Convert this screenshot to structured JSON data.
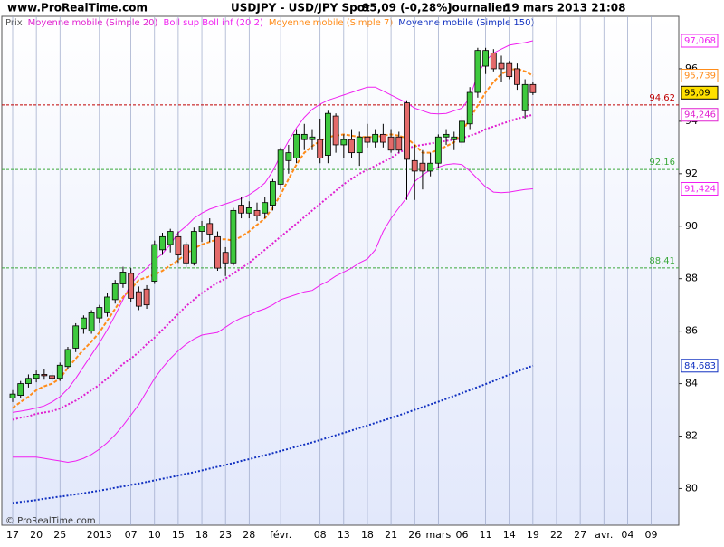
{
  "header": {
    "site": "www.ProRealTime.com",
    "instrument": "USDJPY - USD/JPY Spot",
    "quote": "95,09 (-0,28%)",
    "period": "Journalier",
    "timestamp": "19 mars 2013 21:08"
  },
  "footer": "© ProRealTime.com",
  "chart_data": {
    "type": "candlestick",
    "price_legend": "Prix",
    "price_color_up": "#3ec93e",
    "price_color_down": "#e36a6a",
    "last_label": "95,09",
    "ylim": [
      78.6,
      98.0
    ],
    "yticks": [
      80,
      82,
      84,
      86,
      88,
      90,
      92,
      94,
      96
    ],
    "grid": true,
    "categories": [
      "17",
      null,
      null,
      "20",
      null,
      null,
      "25",
      null,
      null,
      null,
      null,
      "2013",
      null,
      null,
      null,
      "07",
      null,
      null,
      "10",
      null,
      null,
      "15",
      null,
      null,
      "18",
      null,
      null,
      "23",
      null,
      null,
      "28",
      null,
      null,
      null,
      "févr.",
      null,
      null,
      null,
      null,
      "08",
      null,
      null,
      "13",
      null,
      null,
      "18",
      null,
      null,
      "21",
      null,
      null,
      "26",
      null,
      null,
      "mars",
      null,
      null,
      "06",
      null,
      null,
      "11",
      null,
      null,
      "14",
      null,
      null,
      "19",
      null,
      null,
      "22",
      null,
      null,
      "27",
      null,
      null,
      "avr.",
      null,
      null,
      "04",
      null,
      null,
      "09",
      null,
      null,
      null
    ],
    "ohlc": [
      [
        83.45,
        83.75,
        83.3,
        83.6
      ],
      [
        83.55,
        84.1,
        83.45,
        84.0
      ],
      [
        84.0,
        84.35,
        83.85,
        84.2
      ],
      [
        84.2,
        84.5,
        84.05,
        84.35
      ],
      [
        84.35,
        84.55,
        84.15,
        84.3
      ],
      [
        84.3,
        84.45,
        84.05,
        84.2
      ],
      [
        84.2,
        84.8,
        84.1,
        84.7
      ],
      [
        84.65,
        85.4,
        84.55,
        85.3
      ],
      [
        85.35,
        86.3,
        85.2,
        86.2
      ],
      [
        86.1,
        86.6,
        85.9,
        86.5
      ],
      [
        86.0,
        86.8,
        85.9,
        86.7
      ],
      [
        86.5,
        87.0,
        86.3,
        86.9
      ],
      [
        86.7,
        87.45,
        86.55,
        87.3
      ],
      [
        87.2,
        87.95,
        87.05,
        87.8
      ],
      [
        87.8,
        88.45,
        87.65,
        88.25
      ],
      [
        88.2,
        88.4,
        87.1,
        87.25
      ],
      [
        87.5,
        87.7,
        86.8,
        86.95
      ],
      [
        87.6,
        87.75,
        86.85,
        87.0
      ],
      [
        87.9,
        89.45,
        87.8,
        89.3
      ],
      [
        89.1,
        89.75,
        88.9,
        89.6
      ],
      [
        89.3,
        89.9,
        89.0,
        89.8
      ],
      [
        89.6,
        89.8,
        88.6,
        88.9
      ],
      [
        89.3,
        89.4,
        88.4,
        88.6
      ],
      [
        88.6,
        89.95,
        88.5,
        89.8
      ],
      [
        89.8,
        90.2,
        89.4,
        90.0
      ],
      [
        90.1,
        90.3,
        89.4,
        89.7
      ],
      [
        89.6,
        89.8,
        88.3,
        88.4
      ],
      [
        89.0,
        89.2,
        88.1,
        88.6
      ],
      [
        88.6,
        90.7,
        88.5,
        90.6
      ],
      [
        90.8,
        91.1,
        90.3,
        90.5
      ],
      [
        90.5,
        90.95,
        90.3,
        90.7
      ],
      [
        90.6,
        90.9,
        90.2,
        90.4
      ],
      [
        90.5,
        91.1,
        90.3,
        90.9
      ],
      [
        90.8,
        91.8,
        90.6,
        91.7
      ],
      [
        91.6,
        93.0,
        91.4,
        92.9
      ],
      [
        92.5,
        93.1,
        92.0,
        92.8
      ],
      [
        92.6,
        93.7,
        92.4,
        93.5
      ],
      [
        93.3,
        93.9,
        92.9,
        93.5
      ],
      [
        93.3,
        93.7,
        92.9,
        93.4
      ],
      [
        93.3,
        94.1,
        92.4,
        92.6
      ],
      [
        92.7,
        94.4,
        92.4,
        94.3
      ],
      [
        94.2,
        94.3,
        92.8,
        93.1
      ],
      [
        93.1,
        93.5,
        92.6,
        93.3
      ],
      [
        93.3,
        93.7,
        92.6,
        92.8
      ],
      [
        92.8,
        93.6,
        92.3,
        93.4
      ],
      [
        93.4,
        93.9,
        93.0,
        93.2
      ],
      [
        93.2,
        93.7,
        93.0,
        93.5
      ],
      [
        93.5,
        93.9,
        93.0,
        93.2
      ],
      [
        93.4,
        93.7,
        92.8,
        92.9
      ],
      [
        93.4,
        93.6,
        92.8,
        92.9
      ],
      [
        94.7,
        94.8,
        91.0,
        92.55
      ],
      [
        92.5,
        93.1,
        91.0,
        92.1
      ],
      [
        92.4,
        92.9,
        91.4,
        92.1
      ],
      [
        92.1,
        92.8,
        91.9,
        92.4
      ],
      [
        92.4,
        93.5,
        92.2,
        93.4
      ],
      [
        93.4,
        93.7,
        93.1,
        93.5
      ],
      [
        93.3,
        93.6,
        92.9,
        93.4
      ],
      [
        93.2,
        94.2,
        93.0,
        94.0
      ],
      [
        93.9,
        95.3,
        93.7,
        95.1
      ],
      [
        95.1,
        96.8,
        94.9,
        96.7
      ],
      [
        96.1,
        96.8,
        95.8,
        96.7
      ],
      [
        96.6,
        96.75,
        95.9,
        96.0
      ],
      [
        96.2,
        96.5,
        95.5,
        96.0
      ],
      [
        96.2,
        96.3,
        95.6,
        95.7
      ],
      [
        96.0,
        96.2,
        95.2,
        95.4
      ],
      [
        94.4,
        95.6,
        94.1,
        95.4
      ],
      [
        95.4,
        95.5,
        95.0,
        95.09
      ],
      null,
      null,
      null,
      null,
      null,
      null,
      null,
      null,
      null,
      null,
      null,
      null,
      null,
      null,
      null,
      null,
      null,
      null
    ],
    "series": [
      {
        "name": "Moyenne mobile (Simple 20)",
        "color": "#e020d0",
        "dash": "2,2",
        "last_label": "94,246",
        "values": [
          82.62,
          82.7,
          82.75,
          82.85,
          82.9,
          82.95,
          83.05,
          83.2,
          83.35,
          83.55,
          83.75,
          83.95,
          84.2,
          84.45,
          84.75,
          84.95,
          85.2,
          85.5,
          85.75,
          86.05,
          86.35,
          86.65,
          86.95,
          87.2,
          87.45,
          87.65,
          87.85,
          88.0,
          88.2,
          88.4,
          88.6,
          88.85,
          89.1,
          89.35,
          89.6,
          89.85,
          90.1,
          90.35,
          90.6,
          90.85,
          91.1,
          91.35,
          91.6,
          91.8,
          92.0,
          92.15,
          92.3,
          92.45,
          92.6,
          92.8,
          92.95,
          93.05,
          93.1,
          93.15,
          93.2,
          93.25,
          93.3,
          93.35,
          93.45,
          93.55,
          93.7,
          93.8,
          93.9,
          94.0,
          94.1,
          94.18,
          94.246,
          null,
          null,
          null,
          null,
          null,
          null,
          null,
          null,
          null,
          null,
          null,
          null,
          null,
          null,
          null,
          null,
          null,
          null
        ]
      },
      {
        "name": "Boll sup Boll inf (20 2)",
        "color": "#f020f0",
        "dash": "none",
        "last_label": "97,068",
        "last_label_lower": "91,424",
        "values": [
          82.9,
          82.95,
          83.0,
          83.07,
          83.15,
          83.3,
          83.5,
          83.8,
          84.2,
          84.65,
          85.1,
          85.55,
          86.05,
          86.6,
          87.2,
          87.8,
          88.15,
          88.4,
          88.7,
          88.95,
          89.3,
          89.75,
          90.0,
          90.3,
          90.5,
          90.65,
          90.75,
          90.85,
          90.95,
          91.05,
          91.2,
          91.4,
          91.65,
          92.1,
          92.7,
          93.25,
          93.75,
          94.15,
          94.45,
          94.65,
          94.8,
          94.9,
          95.0,
          95.1,
          95.2,
          95.3,
          95.3,
          95.15,
          95.0,
          94.85,
          94.7,
          94.5,
          94.4,
          94.3,
          94.28,
          94.3,
          94.4,
          94.5,
          94.9,
          95.8,
          96.3,
          96.6,
          96.75,
          96.9,
          96.95,
          97.0,
          97.068,
          null,
          null,
          null,
          null,
          null,
          null,
          null,
          null,
          null,
          null,
          null,
          null,
          null,
          null,
          null,
          null,
          null,
          null
        ],
        "values_lower": [
          81.2,
          81.2,
          81.2,
          81.2,
          81.15,
          81.1,
          81.05,
          81.0,
          81.05,
          81.15,
          81.3,
          81.5,
          81.75,
          82.05,
          82.4,
          82.8,
          83.2,
          83.7,
          84.2,
          84.6,
          84.95,
          85.25,
          85.5,
          85.7,
          85.85,
          85.9,
          85.95,
          86.15,
          86.35,
          86.5,
          86.6,
          86.75,
          86.85,
          87.0,
          87.2,
          87.3,
          87.4,
          87.5,
          87.55,
          87.75,
          87.9,
          88.1,
          88.25,
          88.4,
          88.6,
          88.75,
          89.1,
          89.8,
          90.3,
          90.7,
          91.1,
          91.7,
          91.95,
          92.15,
          92.25,
          92.35,
          92.38,
          92.35,
          92.1,
          91.8,
          91.5,
          91.3,
          91.28,
          91.3,
          91.35,
          91.4,
          91.424,
          null,
          null,
          null,
          null,
          null,
          null,
          null,
          null,
          null,
          null,
          null,
          null,
          null,
          null,
          null,
          null,
          null,
          null
        ]
      },
      {
        "name": "Moyenne mobile (Simple 7)",
        "color": "#ff8c1a",
        "dash": "4,2",
        "last_label": "95,739",
        "values": [
          83.07,
          83.3,
          83.5,
          83.75,
          83.9,
          84.0,
          84.2,
          84.6,
          84.95,
          85.3,
          85.6,
          85.95,
          86.4,
          86.85,
          87.3,
          87.6,
          87.95,
          88.05,
          88.15,
          88.3,
          88.5,
          88.7,
          88.95,
          89.15,
          89.3,
          89.4,
          89.5,
          89.5,
          89.45,
          89.6,
          89.8,
          90.05,
          90.3,
          90.7,
          91.2,
          91.8,
          92.35,
          92.8,
          93.05,
          93.25,
          93.4,
          93.45,
          93.5,
          93.45,
          93.4,
          93.4,
          93.4,
          93.45,
          93.5,
          93.45,
          93.35,
          93.1,
          92.8,
          92.8,
          92.9,
          93.05,
          93.2,
          93.6,
          94.1,
          94.6,
          95.1,
          95.5,
          95.8,
          95.95,
          96.0,
          95.9,
          95.739,
          null,
          null,
          null,
          null,
          null,
          null,
          null,
          null,
          null,
          null,
          null,
          null,
          null,
          null,
          null,
          null,
          null,
          null
        ]
      },
      {
        "name": "Moyenne mobile (Simple 150)",
        "color": "#1030c0",
        "dash": "2,2",
        "last_label": "84,683",
        "values": [
          79.45,
          79.49,
          79.52,
          79.56,
          79.61,
          79.65,
          79.69,
          79.73,
          79.78,
          79.82,
          79.87,
          79.92,
          79.97,
          80.03,
          80.08,
          80.14,
          80.19,
          80.25,
          80.31,
          80.37,
          80.43,
          80.49,
          80.56,
          80.62,
          80.69,
          80.76,
          80.83,
          80.9,
          80.97,
          81.05,
          81.12,
          81.2,
          81.27,
          81.35,
          81.43,
          81.51,
          81.6,
          81.68,
          81.76,
          81.85,
          81.94,
          82.03,
          82.12,
          82.21,
          82.31,
          82.4,
          82.5,
          82.59,
          82.69,
          82.79,
          82.89,
          83.0,
          83.1,
          83.21,
          83.31,
          83.42,
          83.53,
          83.64,
          83.75,
          83.87,
          83.98,
          84.1,
          84.22,
          84.34,
          84.46,
          84.58,
          84.683,
          null,
          null,
          null,
          null,
          null,
          null,
          null,
          null,
          null,
          null,
          null,
          null,
          null,
          null,
          null,
          null,
          null,
          null
        ]
      }
    ],
    "levels": [
      {
        "value": 94.62,
        "label": "94,62",
        "color": "#c00000"
      },
      {
        "value": 92.16,
        "label": "92,16",
        "color": "#3aa83a"
      },
      {
        "value": 88.41,
        "label": "88,41",
        "color": "#3aa83a"
      }
    ]
  }
}
